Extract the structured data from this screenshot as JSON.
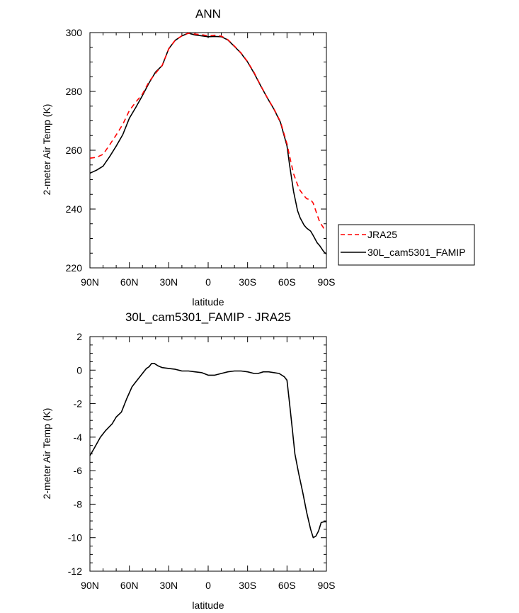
{
  "chart_data": [
    {
      "type": "line",
      "title": "ANN",
      "xlabel": "latitude",
      "ylabel": "2-meter Air Temp (K)",
      "xlim": [
        90,
        -90
      ],
      "ylim": [
        220,
        300
      ],
      "xticks": [
        90,
        60,
        30,
        0,
        -30,
        -60,
        -90
      ],
      "xtick_labels": [
        "90N",
        "60N",
        "30N",
        "0",
        "30S",
        "60S",
        "90S"
      ],
      "yticks": [
        220,
        240,
        260,
        280,
        300
      ],
      "ytick_labels": [
        "220",
        "240",
        "260",
        "280",
        "300"
      ],
      "legend_position": "right",
      "series": [
        {
          "name": "JRA25",
          "color": "#ff0000",
          "dash": "dashed",
          "x": [
            90,
            85,
            80,
            75,
            70,
            65,
            60,
            55,
            50,
            45,
            40,
            35,
            30,
            25,
            20,
            15,
            10,
            5,
            0,
            -5,
            -10,
            -15,
            -20,
            -25,
            -30,
            -35,
            -40,
            -45,
            -50,
            -55,
            -60,
            -62,
            -65,
            -68,
            -70,
            -73,
            -75,
            -78,
            -80,
            -83,
            -85,
            -88,
            -90
          ],
          "y": [
            257.3,
            257.6,
            258.6,
            261.8,
            265.2,
            268.8,
            273.5,
            276.4,
            279.1,
            283.3,
            286.2,
            288.9,
            294.4,
            297.5,
            298.9,
            299.8,
            299.5,
            299.3,
            298.9,
            299.1,
            298.8,
            297.6,
            295.4,
            293.1,
            290.1,
            286.4,
            282.0,
            277.9,
            274.1,
            269.7,
            262.2,
            258.0,
            252.0,
            248.3,
            246.3,
            244.5,
            243.5,
            243.2,
            242.0,
            238.0,
            235.5,
            233.5,
            233.5
          ]
        },
        {
          "name": "30L_cam5301_FAMIP",
          "color": "#000000",
          "dash": "solid",
          "x": [
            90,
            85,
            80,
            75,
            70,
            65,
            60,
            55,
            50,
            45,
            40,
            35,
            30,
            25,
            20,
            15,
            10,
            5,
            0,
            -5,
            -10,
            -15,
            -20,
            -25,
            -30,
            -35,
            -40,
            -45,
            -50,
            -55,
            -60,
            -62,
            -65,
            -68,
            -70,
            -73,
            -75,
            -78,
            -80,
            -83,
            -85,
            -88,
            -90
          ],
          "y": [
            252.2,
            253.2,
            254.6,
            257.8,
            261.4,
            265.3,
            270.9,
            274.6,
            278.6,
            282.9,
            286.6,
            288.8,
            294.5,
            297.4,
            298.9,
            299.8,
            299.2,
            298.9,
            298.6,
            298.7,
            298.6,
            297.5,
            295.3,
            293.0,
            290.0,
            286.2,
            281.9,
            277.8,
            274.0,
            269.5,
            261.5,
            255.0,
            246.0,
            239.5,
            237.0,
            234.5,
            233.5,
            232.5,
            231.0,
            228.5,
            227.5,
            225.5,
            224.7
          ]
        }
      ]
    },
    {
      "type": "line",
      "title": "30L_cam5301_FAMIP - JRA25",
      "xlabel": "latitude",
      "ylabel": "2-meter Air Temp (K)",
      "xlim": [
        90,
        -90
      ],
      "ylim": [
        -12,
        2
      ],
      "xticks": [
        90,
        60,
        30,
        0,
        -30,
        -60,
        -90
      ],
      "xtick_labels": [
        "90N",
        "60N",
        "30N",
        "0",
        "30S",
        "60S",
        "90S"
      ],
      "yticks": [
        -12,
        -10,
        -8,
        -6,
        -4,
        -2,
        0,
        2
      ],
      "ytick_labels": [
        "-12",
        "-10",
        "-8",
        "-6",
        "-4",
        "-2",
        "0",
        "2"
      ],
      "series": [
        {
          "color": "#000000",
          "dash": "solid",
          "x": [
            90,
            87,
            82,
            78,
            73,
            70,
            66,
            62,
            58,
            55,
            50,
            47,
            45,
            43,
            41,
            38,
            35,
            30,
            25,
            20,
            15,
            10,
            5,
            0,
            -5,
            -10,
            -15,
            -20,
            -25,
            -30,
            -35,
            -38,
            -42,
            -46,
            -50,
            -54,
            -58,
            -60,
            -62,
            -64,
            -66,
            -69,
            -72,
            -75,
            -78,
            -80,
            -82,
            -84,
            -86,
            -88,
            -90
          ],
          "y": [
            -5.1,
            -4.7,
            -4.0,
            -3.6,
            -3.2,
            -2.8,
            -2.5,
            -1.7,
            -1.0,
            -0.7,
            -0.2,
            0.1,
            0.2,
            0.4,
            0.4,
            0.25,
            0.15,
            0.1,
            0.05,
            -0.05,
            -0.05,
            -0.1,
            -0.15,
            -0.3,
            -0.3,
            -0.2,
            -0.1,
            -0.05,
            -0.05,
            -0.1,
            -0.2,
            -0.2,
            -0.1,
            -0.1,
            -0.15,
            -0.2,
            -0.4,
            -0.6,
            -2.0,
            -3.5,
            -5.0,
            -6.2,
            -7.3,
            -8.5,
            -9.5,
            -10.0,
            -9.9,
            -9.6,
            -9.1,
            -9.05,
            -9.05
          ]
        }
      ]
    }
  ]
}
